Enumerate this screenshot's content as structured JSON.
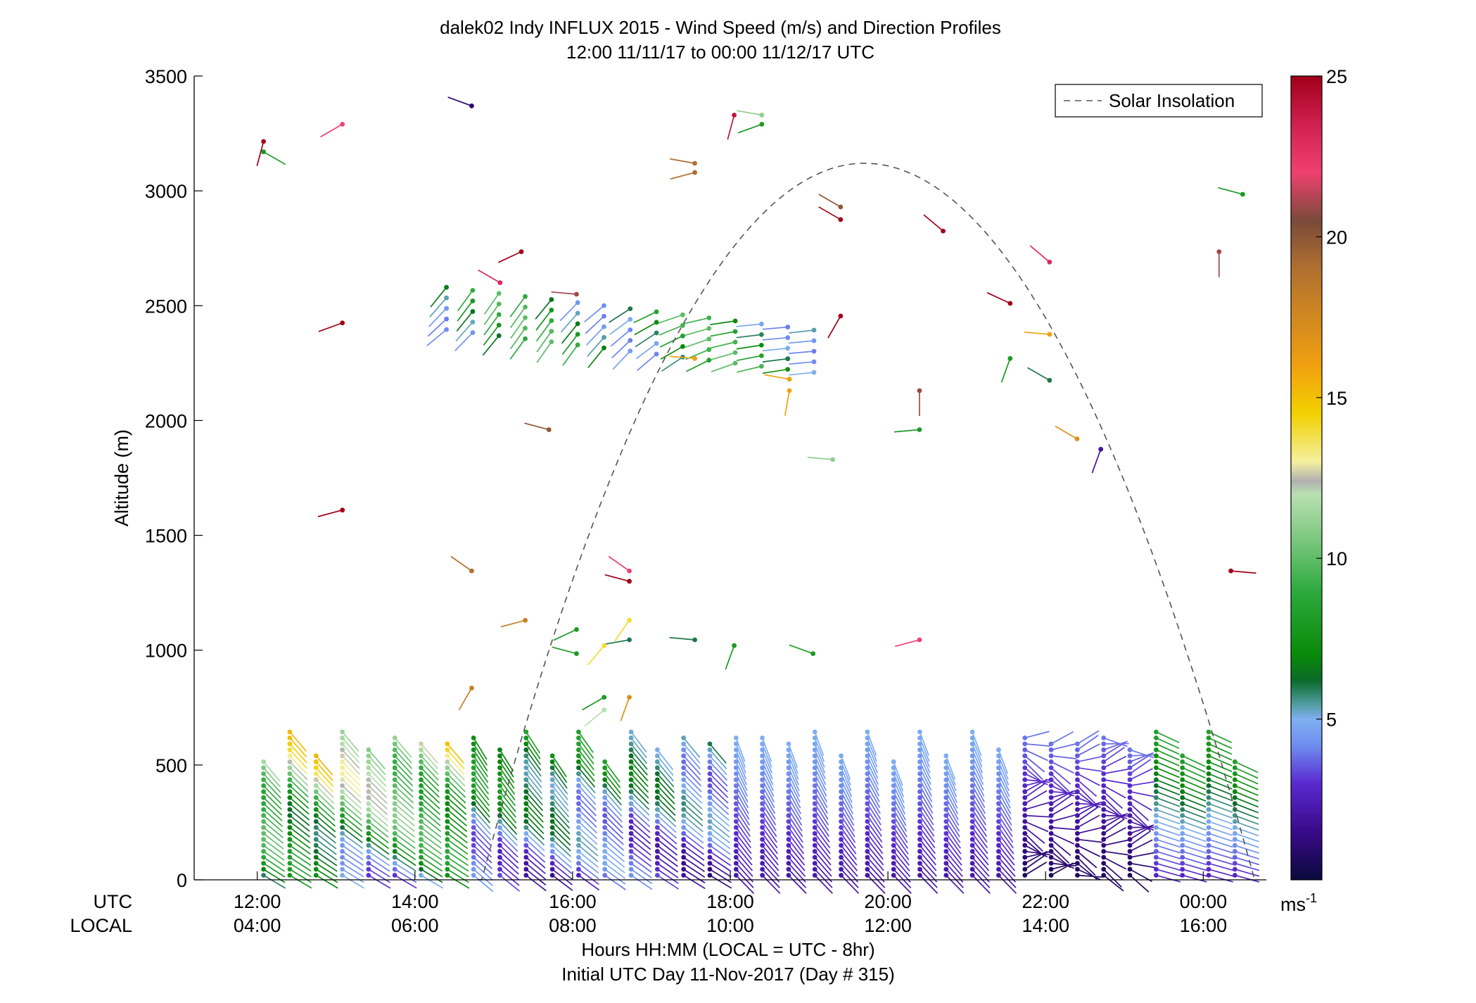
{
  "chart_data": {
    "type": "scatter",
    "title": "dalek02 Indy INFLUX 2015 - Wind Speed (m/s) and Direction Profiles",
    "subtitle": "12:00 11/11/17 to 00:00 11/12/17  UTC",
    "ylabel": "Altitude (m)",
    "xlabel": "Hours HH:MM  (LOCAL = UTC - 8hr)",
    "xlabel2": "Initial UTC Day 11-Nov-2017 (Day # 315)",
    "ylim": [
      0,
      3500
    ],
    "xlim_hours_utc": [
      11.2,
      24.8
    ],
    "y_ticks": [
      "0",
      "500",
      "1000",
      "1500",
      "2000",
      "2500",
      "3000",
      "3500"
    ],
    "y_tick_values": [
      0,
      500,
      1000,
      1500,
      2000,
      2500,
      3000,
      3500
    ],
    "x_axis_row_labels": [
      "UTC",
      "LOCAL"
    ],
    "x_tick_hours": [
      12,
      14,
      16,
      18,
      20,
      22,
      24
    ],
    "x_ticks_utc": [
      "12:00",
      "14:00",
      "16:00",
      "18:00",
      "20:00",
      "22:00",
      "00:00"
    ],
    "x_ticks_local": [
      "04:00",
      "06:00",
      "08:00",
      "10:00",
      "12:00",
      "14:00",
      "16:00"
    ],
    "legend": {
      "label": "Solar Insolation",
      "position": "top-right"
    },
    "solar_insolation": {
      "style": "dashed",
      "color": "#555555",
      "start_hour": 14.8,
      "peak_hour": 19.7,
      "peak_altitude": 3120,
      "end_hour": 24.7
    },
    "colorbar": {
      "label": "ms",
      "label_superscript": "-1",
      "ticks": [
        "5",
        "10",
        "15",
        "20",
        "25"
      ],
      "tick_values": [
        5,
        10,
        15,
        20,
        25
      ],
      "range": [
        0,
        25
      ],
      "stops": [
        {
          "v": 0,
          "c": "#0a0a3c"
        },
        {
          "v": 1.5,
          "c": "#3a0a8a"
        },
        {
          "v": 3,
          "c": "#5a2ad0"
        },
        {
          "v": 4.2,
          "c": "#6f8ff0"
        },
        {
          "v": 5,
          "c": "#7fb0f0"
        },
        {
          "v": 5.5,
          "c": "#4d9a9a"
        },
        {
          "v": 6.2,
          "c": "#0a6a2a"
        },
        {
          "v": 7,
          "c": "#0a8a0a"
        },
        {
          "v": 9,
          "c": "#2faa3f"
        },
        {
          "v": 11,
          "c": "#8fcf8f"
        },
        {
          "v": 12,
          "c": "#b8e0b0"
        },
        {
          "v": 12.4,
          "c": "#b0b0b0"
        },
        {
          "v": 13,
          "c": "#f4f0a0"
        },
        {
          "v": 14.5,
          "c": "#f2d000"
        },
        {
          "v": 16,
          "c": "#f0a010"
        },
        {
          "v": 19,
          "c": "#b07030"
        },
        {
          "v": 20.5,
          "c": "#7a4a3a"
        },
        {
          "v": 22,
          "c": "#f04070"
        },
        {
          "v": 23.5,
          "c": "#d02050"
        },
        {
          "v": 25,
          "c": "#a00018"
        }
      ]
    },
    "upper_barbs": [
      {
        "t": 12.08,
        "z": 3170,
        "s": 8,
        "d": 120
      },
      {
        "t": 12.08,
        "z": 3215,
        "s": 25,
        "d": 195
      },
      {
        "t": 13.08,
        "z": 3290,
        "s": 22,
        "d": 240
      },
      {
        "t": 14.72,
        "z": 3370,
        "s": 1,
        "d": 290
      },
      {
        "t": 18.05,
        "z": 3330,
        "s": 24,
        "d": 195
      },
      {
        "t": 18.4,
        "z": 3290,
        "s": 8,
        "d": 250
      },
      {
        "t": 18.4,
        "z": 3330,
        "s": 11,
        "d": 280
      },
      {
        "t": 17.55,
        "z": 3080,
        "s": 19,
        "d": 255
      },
      {
        "t": 17.55,
        "z": 3120,
        "s": 19,
        "d": 280
      },
      {
        "t": 19.4,
        "z": 2930,
        "s": 20,
        "d": 300
      },
      {
        "t": 19.4,
        "z": 2875,
        "s": 25,
        "d": 300
      },
      {
        "t": 20.7,
        "z": 2825,
        "s": 25,
        "d": 310
      },
      {
        "t": 21.55,
        "z": 2510,
        "s": 25,
        "d": 295
      },
      {
        "t": 22.05,
        "z": 2690,
        "s": 23,
        "d": 310
      },
      {
        "t": 24.2,
        "z": 2735,
        "s": 21,
        "d": 180
      },
      {
        "t": 24.5,
        "z": 2985,
        "s": 8,
        "d": 285
      },
      {
        "t": 15.08,
        "z": 2600,
        "s": 23,
        "d": 300
      },
      {
        "t": 15.35,
        "z": 2735,
        "s": 25,
        "d": 245
      },
      {
        "t": 13.08,
        "z": 2425,
        "s": 25,
        "d": 250
      },
      {
        "t": 13.08,
        "z": 1610,
        "s": 25,
        "d": 255
      },
      {
        "t": 15.7,
        "z": 1960,
        "s": 20,
        "d": 285
      },
      {
        "t": 19.4,
        "z": 2455,
        "s": 25,
        "d": 210
      },
      {
        "t": 20.4,
        "z": 2130,
        "s": 21,
        "d": 180
      },
      {
        "t": 20.4,
        "z": 1960,
        "s": 8,
        "d": 265
      },
      {
        "t": 19.3,
        "z": 1830,
        "s": 11,
        "d": 275
      },
      {
        "t": 21.55,
        "z": 2270,
        "s": 8,
        "d": 200
      },
      {
        "t": 22.05,
        "z": 2175,
        "s": 6,
        "d": 300
      },
      {
        "t": 22.05,
        "z": 2375,
        "s": 16,
        "d": 275
      },
      {
        "t": 22.4,
        "z": 1920,
        "s": 17,
        "d": 300
      },
      {
        "t": 22.7,
        "z": 1875,
        "s": 2,
        "d": 200
      },
      {
        "t": 18.75,
        "z": 2180,
        "s": 16,
        "d": 280
      },
      {
        "t": 18.75,
        "z": 2130,
        "s": 16,
        "d": 190
      },
      {
        "t": 17.55,
        "z": 2270,
        "s": 16,
        "d": 275
      },
      {
        "t": 16.05,
        "z": 2550,
        "s": 21,
        "d": 275
      },
      {
        "t": 14.72,
        "z": 1345,
        "s": 19,
        "d": 305
      },
      {
        "t": 16.72,
        "z": 1345,
        "s": 22,
        "d": 305
      },
      {
        "t": 16.72,
        "z": 1300,
        "s": 25,
        "d": 285
      },
      {
        "t": 15.4,
        "z": 1130,
        "s": 18,
        "d": 255
      },
      {
        "t": 16.05,
        "z": 985,
        "s": 8,
        "d": 285
      },
      {
        "t": 16.05,
        "z": 1090,
        "s": 8,
        "d": 245
      },
      {
        "t": 16.72,
        "z": 1130,
        "s": 14,
        "d": 215
      },
      {
        "t": 16.72,
        "z": 1045,
        "s": 6,
        "d": 260
      },
      {
        "t": 17.55,
        "z": 1045,
        "s": 6,
        "d": 275
      },
      {
        "t": 18.05,
        "z": 1020,
        "s": 8,
        "d": 200
      },
      {
        "t": 19.05,
        "z": 985,
        "s": 8,
        "d": 290
      },
      {
        "t": 20.4,
        "z": 1045,
        "s": 22,
        "d": 255
      },
      {
        "t": 24.35,
        "z": 1345,
        "s": 25,
        "d": 95
      },
      {
        "t": 14.72,
        "z": 835,
        "s": 18,
        "d": 210
      },
      {
        "t": 16.72,
        "z": 795,
        "s": 17,
        "d": 200
      },
      {
        "t": 16.4,
        "z": 795,
        "s": 8,
        "d": 240
      },
      {
        "t": 16.4,
        "z": 740,
        "s": 12,
        "d": 230
      },
      {
        "t": 16.4,
        "z": 1020,
        "s": 14,
        "d": 220
      }
    ]
  }
}
